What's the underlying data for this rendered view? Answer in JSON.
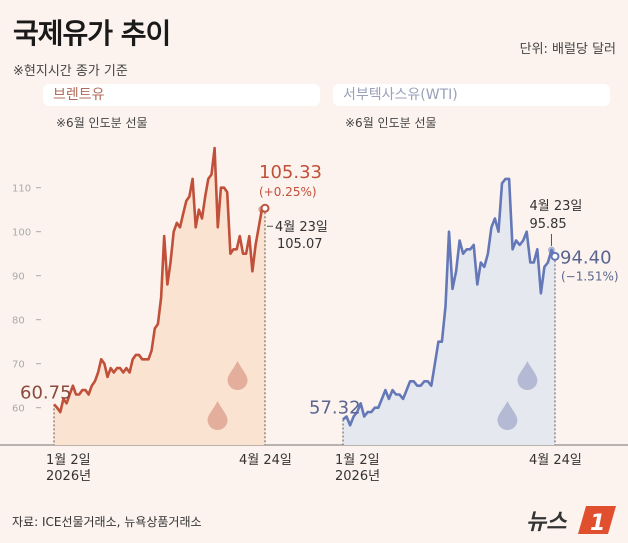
{
  "header": {
    "title": "국제유가 추이",
    "unit": "단위: 배럴당 달러",
    "note": "※현지시간 종가 기준"
  },
  "footer": {
    "source": "자료: ICE선물거래소, 뉴욕상품거래소",
    "logo_text": "뉴스1"
  },
  "colors": {
    "background": "#fcf3ee",
    "brent_line": "#c0503a",
    "brent_fill": "#fbe3d2",
    "wti_line": "#6478b8",
    "wti_fill": "#e6e8f0"
  },
  "chart_data": [
    {
      "type": "area",
      "title": "브렌트유",
      "subtitle": "※6월 인도분 선물",
      "x_start_label": "1월 2일",
      "x_start_year": "2026년",
      "x_end_label": "4월 24일",
      "y_ticks": [
        60,
        70,
        80,
        90,
        100,
        110
      ],
      "y_tick_labels": [
        "60",
        "70",
        "80",
        "90",
        "100",
        "110"
      ],
      "ylim": [
        50,
        120
      ],
      "grid": false,
      "start_value": 60.75,
      "start_value_label": "60.75",
      "prev_label_date": "4월 23일",
      "prev_value": 105.07,
      "prev_value_label": "105.07",
      "end_value": 105.33,
      "end_value_label": "105.33",
      "end_change_label": "(+0.25%)",
      "values": [
        60.75,
        60,
        59,
        62,
        61,
        63,
        65,
        63,
        63,
        64,
        64,
        63,
        65,
        66,
        68,
        71,
        70,
        67,
        69,
        68,
        69,
        69,
        68,
        69,
        68,
        71,
        72,
        72,
        71,
        71,
        71,
        73,
        78,
        79,
        85,
        99,
        88,
        93,
        100,
        102,
        101,
        104,
        107,
        108,
        112,
        101,
        105,
        103,
        108,
        112,
        113,
        119,
        101,
        110,
        110,
        109,
        95,
        96,
        96,
        99,
        95,
        95,
        99,
        91,
        97,
        101,
        105.07,
        105.33
      ]
    },
    {
      "type": "area",
      "title": "서부텍사스유(WTI)",
      "subtitle": "※6월 인도분 선물",
      "x_start_label": "1월 2일",
      "x_start_year": "2026년",
      "x_end_label": "4월 24일",
      "ylim": [
        50,
        120
      ],
      "grid": false,
      "start_value": 57.32,
      "start_value_label": "57.32",
      "prev_label_date": "4월 23일",
      "prev_value": 95.85,
      "prev_value_label": "95.85",
      "end_value": 94.4,
      "end_value_label": "94.40",
      "end_change_label": "(−1.51%)",
      "values": [
        57.32,
        58,
        56,
        58,
        59,
        61,
        58,
        59,
        59,
        60,
        60,
        62,
        64,
        62,
        64,
        63,
        63,
        62,
        64,
        66,
        66,
        65,
        65,
        66,
        66,
        65,
        70,
        75,
        75,
        83,
        100,
        87,
        91,
        98,
        95,
        96,
        96,
        97,
        88,
        93,
        92,
        95,
        101,
        103,
        100,
        111,
        112,
        112,
        96,
        98,
        97,
        98,
        100,
        93,
        93,
        96,
        86,
        92,
        93,
        95.85,
        94.4
      ]
    }
  ]
}
